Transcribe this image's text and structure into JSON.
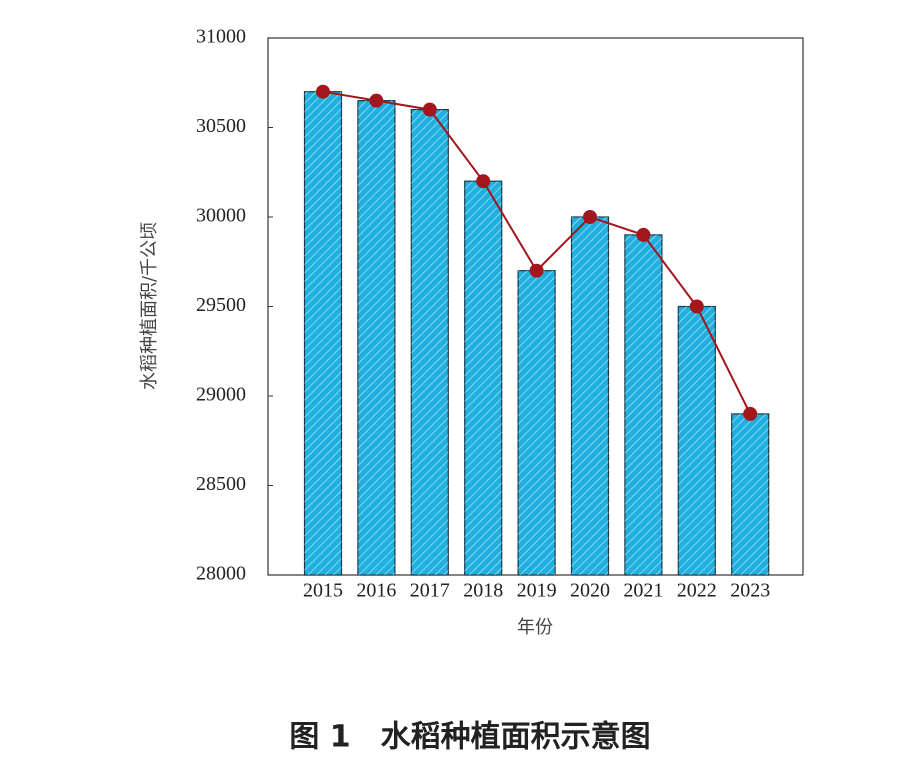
{
  "chart_data": {
    "type": "bar",
    "title": "图 1　水稻种植面积示意图",
    "x_label": "年份",
    "y_label": "水稻种植面积/千公顷",
    "categories": [
      "2015",
      "2016",
      "2017",
      "2018",
      "2019",
      "2020",
      "2021",
      "2022",
      "2023"
    ],
    "values": [
      30700,
      30650,
      30600,
      30200,
      29700,
      30000,
      29900,
      29500,
      28900
    ],
    "color": "#1fb0e0",
    "line_overlay": true,
    "line_color": "#a3161c",
    "ylim": [
      28000,
      31000
    ],
    "yticks": [
      28000,
      28500,
      29000,
      29500,
      30000,
      30500,
      31000
    ],
    "grid": false
  }
}
